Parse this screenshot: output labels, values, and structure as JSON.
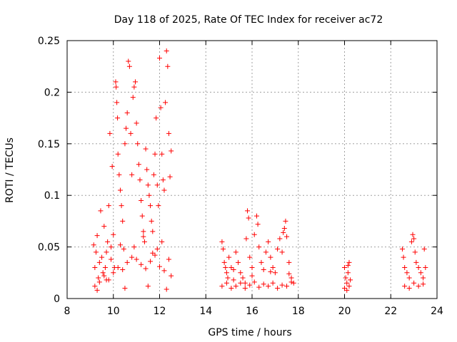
{
  "chart_data": {
    "type": "scatter",
    "title": "Day 118 of 2025, Rate Of TEC Index for receiver ac72",
    "xlabel": "GPS time / hours",
    "ylabel": "ROTI / TECUs",
    "xlim": [
      8,
      24
    ],
    "ylim": [
      0,
      0.25
    ],
    "xticks": [
      8,
      10,
      12,
      14,
      16,
      18,
      20,
      22,
      24
    ],
    "xtick_labels": [
      "8",
      "10",
      "12",
      "14",
      "16",
      "18",
      "20",
      "22",
      "24"
    ],
    "yticks": [
      0,
      0.05,
      0.1,
      0.15,
      0.2,
      0.25
    ],
    "ytick_labels": [
      "0",
      "0.05",
      "0.1",
      "0.15",
      "0.2",
      "0.25"
    ],
    "grid": true,
    "marker": "plus",
    "color": "#ff0000",
    "series": [
      {
        "name": "ROTI",
        "points": [
          [
            9.15,
            0.052
          ],
          [
            9.2,
            0.03
          ],
          [
            9.25,
            0.045
          ],
          [
            9.3,
            0.061
          ],
          [
            9.35,
            0.02
          ],
          [
            9.4,
            0.035
          ],
          [
            9.45,
            0.085
          ],
          [
            9.5,
            0.04
          ],
          [
            9.55,
            0.025
          ],
          [
            9.6,
            0.07
          ],
          [
            9.65,
            0.03
          ],
          [
            9.7,
            0.018
          ],
          [
            9.75,
            0.055
          ],
          [
            9.8,
            0.09
          ],
          [
            9.85,
            0.16
          ],
          [
            9.9,
            0.05
          ],
          [
            9.95,
            0.128
          ],
          [
            10.0,
            0.062
          ],
          [
            10.05,
            0.03
          ],
          [
            10.1,
            0.21
          ],
          [
            10.12,
            0.205
          ],
          [
            10.15,
            0.19
          ],
          [
            10.18,
            0.175
          ],
          [
            10.2,
            0.14
          ],
          [
            10.25,
            0.12
          ],
          [
            10.3,
            0.105
          ],
          [
            10.35,
            0.09
          ],
          [
            10.4,
            0.075
          ],
          [
            10.45,
            0.048
          ],
          [
            10.5,
            0.15
          ],
          [
            10.55,
            0.165
          ],
          [
            10.6,
            0.18
          ],
          [
            10.65,
            0.23
          ],
          [
            10.7,
            0.225
          ],
          [
            10.75,
            0.16
          ],
          [
            10.8,
            0.12
          ],
          [
            10.85,
            0.195
          ],
          [
            10.9,
            0.205
          ],
          [
            10.95,
            0.21
          ],
          [
            11.0,
            0.17
          ],
          [
            11.05,
            0.15
          ],
          [
            11.1,
            0.13
          ],
          [
            11.15,
            0.115
          ],
          [
            11.2,
            0.095
          ],
          [
            11.25,
            0.08
          ],
          [
            11.3,
            0.065
          ],
          [
            11.35,
            0.055
          ],
          [
            11.4,
            0.145
          ],
          [
            11.45,
            0.125
          ],
          [
            11.5,
            0.11
          ],
          [
            11.55,
            0.1
          ],
          [
            11.6,
            0.09
          ],
          [
            11.65,
            0.075
          ],
          [
            11.7,
            0.065
          ],
          [
            11.75,
            0.12
          ],
          [
            11.8,
            0.14
          ],
          [
            11.85,
            0.175
          ],
          [
            11.9,
            0.11
          ],
          [
            11.95,
            0.09
          ],
          [
            12.0,
            0.233
          ],
          [
            12.05,
            0.185
          ],
          [
            12.1,
            0.14
          ],
          [
            12.15,
            0.115
          ],
          [
            12.2,
            0.105
          ],
          [
            12.25,
            0.19
          ],
          [
            12.3,
            0.24
          ],
          [
            12.35,
            0.225
          ],
          [
            12.4,
            0.16
          ],
          [
            12.45,
            0.118
          ],
          [
            12.5,
            0.143
          ],
          [
            9.2,
            0.012
          ],
          [
            9.4,
            0.016
          ],
          [
            9.6,
            0.022
          ],
          [
            9.8,
            0.018
          ],
          [
            10.0,
            0.025
          ],
          [
            10.2,
            0.03
          ],
          [
            10.4,
            0.028
          ],
          [
            10.6,
            0.035
          ],
          [
            10.8,
            0.04
          ],
          [
            11.0,
            0.038
          ],
          [
            11.2,
            0.033
          ],
          [
            11.4,
            0.029
          ],
          [
            11.6,
            0.036
          ],
          [
            11.8,
            0.042
          ],
          [
            12.0,
            0.031
          ],
          [
            12.2,
            0.027
          ],
          [
            12.4,
            0.038
          ],
          [
            12.5,
            0.022
          ],
          [
            9.3,
            0.008
          ],
          [
            10.5,
            0.01
          ],
          [
            11.5,
            0.012
          ],
          [
            12.3,
            0.009
          ],
          [
            9.7,
            0.045
          ],
          [
            10.9,
            0.05
          ],
          [
            11.3,
            0.06
          ],
          [
            11.9,
            0.048
          ],
          [
            12.1,
            0.055
          ],
          [
            10.3,
            0.052
          ],
          [
            9.9,
            0.038
          ],
          [
            11.7,
            0.044
          ],
          [
            14.7,
            0.055
          ],
          [
            14.75,
            0.048
          ],
          [
            14.8,
            0.035
          ],
          [
            14.85,
            0.03
          ],
          [
            14.9,
            0.025
          ],
          [
            14.95,
            0.02
          ],
          [
            15.0,
            0.04
          ],
          [
            15.1,
            0.03
          ],
          [
            15.2,
            0.018
          ],
          [
            15.3,
            0.045
          ],
          [
            15.4,
            0.035
          ],
          [
            15.5,
            0.025
          ],
          [
            15.6,
            0.02
          ],
          [
            15.7,
            0.015
          ],
          [
            15.75,
            0.058
          ],
          [
            15.8,
            0.085
          ],
          [
            15.85,
            0.078
          ],
          [
            15.9,
            0.04
          ],
          [
            16.0,
            0.03
          ],
          [
            16.1,
            0.062
          ],
          [
            16.2,
            0.08
          ],
          [
            16.25,
            0.072
          ],
          [
            16.3,
            0.05
          ],
          [
            16.4,
            0.035
          ],
          [
            16.5,
            0.028
          ],
          [
            16.6,
            0.045
          ],
          [
            16.7,
            0.055
          ],
          [
            16.8,
            0.04
          ],
          [
            16.9,
            0.03
          ],
          [
            17.0,
            0.025
          ],
          [
            17.1,
            0.048
          ],
          [
            17.2,
            0.058
          ],
          [
            17.3,
            0.045
          ],
          [
            17.35,
            0.064
          ],
          [
            17.4,
            0.068
          ],
          [
            17.45,
            0.075
          ],
          [
            17.5,
            0.06
          ],
          [
            17.6,
            0.035
          ],
          [
            17.7,
            0.02
          ],
          [
            17.8,
            0.015
          ],
          [
            14.7,
            0.012
          ],
          [
            14.9,
            0.015
          ],
          [
            15.1,
            0.01
          ],
          [
            15.3,
            0.012
          ],
          [
            15.5,
            0.015
          ],
          [
            15.7,
            0.01
          ],
          [
            15.9,
            0.013
          ],
          [
            16.1,
            0.016
          ],
          [
            16.3,
            0.011
          ],
          [
            16.5,
            0.014
          ],
          [
            16.7,
            0.012
          ],
          [
            16.9,
            0.015
          ],
          [
            17.1,
            0.01
          ],
          [
            17.3,
            0.013
          ],
          [
            17.5,
            0.012
          ],
          [
            17.7,
            0.016
          ],
          [
            15.2,
            0.028
          ],
          [
            16.0,
            0.022
          ],
          [
            16.8,
            0.026
          ],
          [
            17.6,
            0.024
          ],
          [
            20.0,
            0.03
          ],
          [
            20.05,
            0.02
          ],
          [
            20.1,
            0.015
          ],
          [
            20.15,
            0.025
          ],
          [
            20.2,
            0.035
          ],
          [
            20.25,
            0.018
          ],
          [
            20.0,
            0.01
          ],
          [
            20.1,
            0.008
          ],
          [
            20.2,
            0.012
          ],
          [
            20.15,
            0.032
          ],
          [
            22.5,
            0.048
          ],
          [
            22.55,
            0.04
          ],
          [
            22.6,
            0.03
          ],
          [
            22.7,
            0.025
          ],
          [
            22.8,
            0.02
          ],
          [
            22.9,
            0.055
          ],
          [
            22.95,
            0.062
          ],
          [
            23.0,
            0.058
          ],
          [
            23.05,
            0.045
          ],
          [
            23.1,
            0.035
          ],
          [
            23.2,
            0.03
          ],
          [
            23.3,
            0.025
          ],
          [
            23.4,
            0.02
          ],
          [
            23.45,
            0.048
          ],
          [
            23.5,
            0.03
          ],
          [
            22.6,
            0.012
          ],
          [
            22.8,
            0.01
          ],
          [
            23.0,
            0.015
          ],
          [
            23.2,
            0.012
          ],
          [
            23.4,
            0.014
          ]
        ]
      }
    ]
  }
}
